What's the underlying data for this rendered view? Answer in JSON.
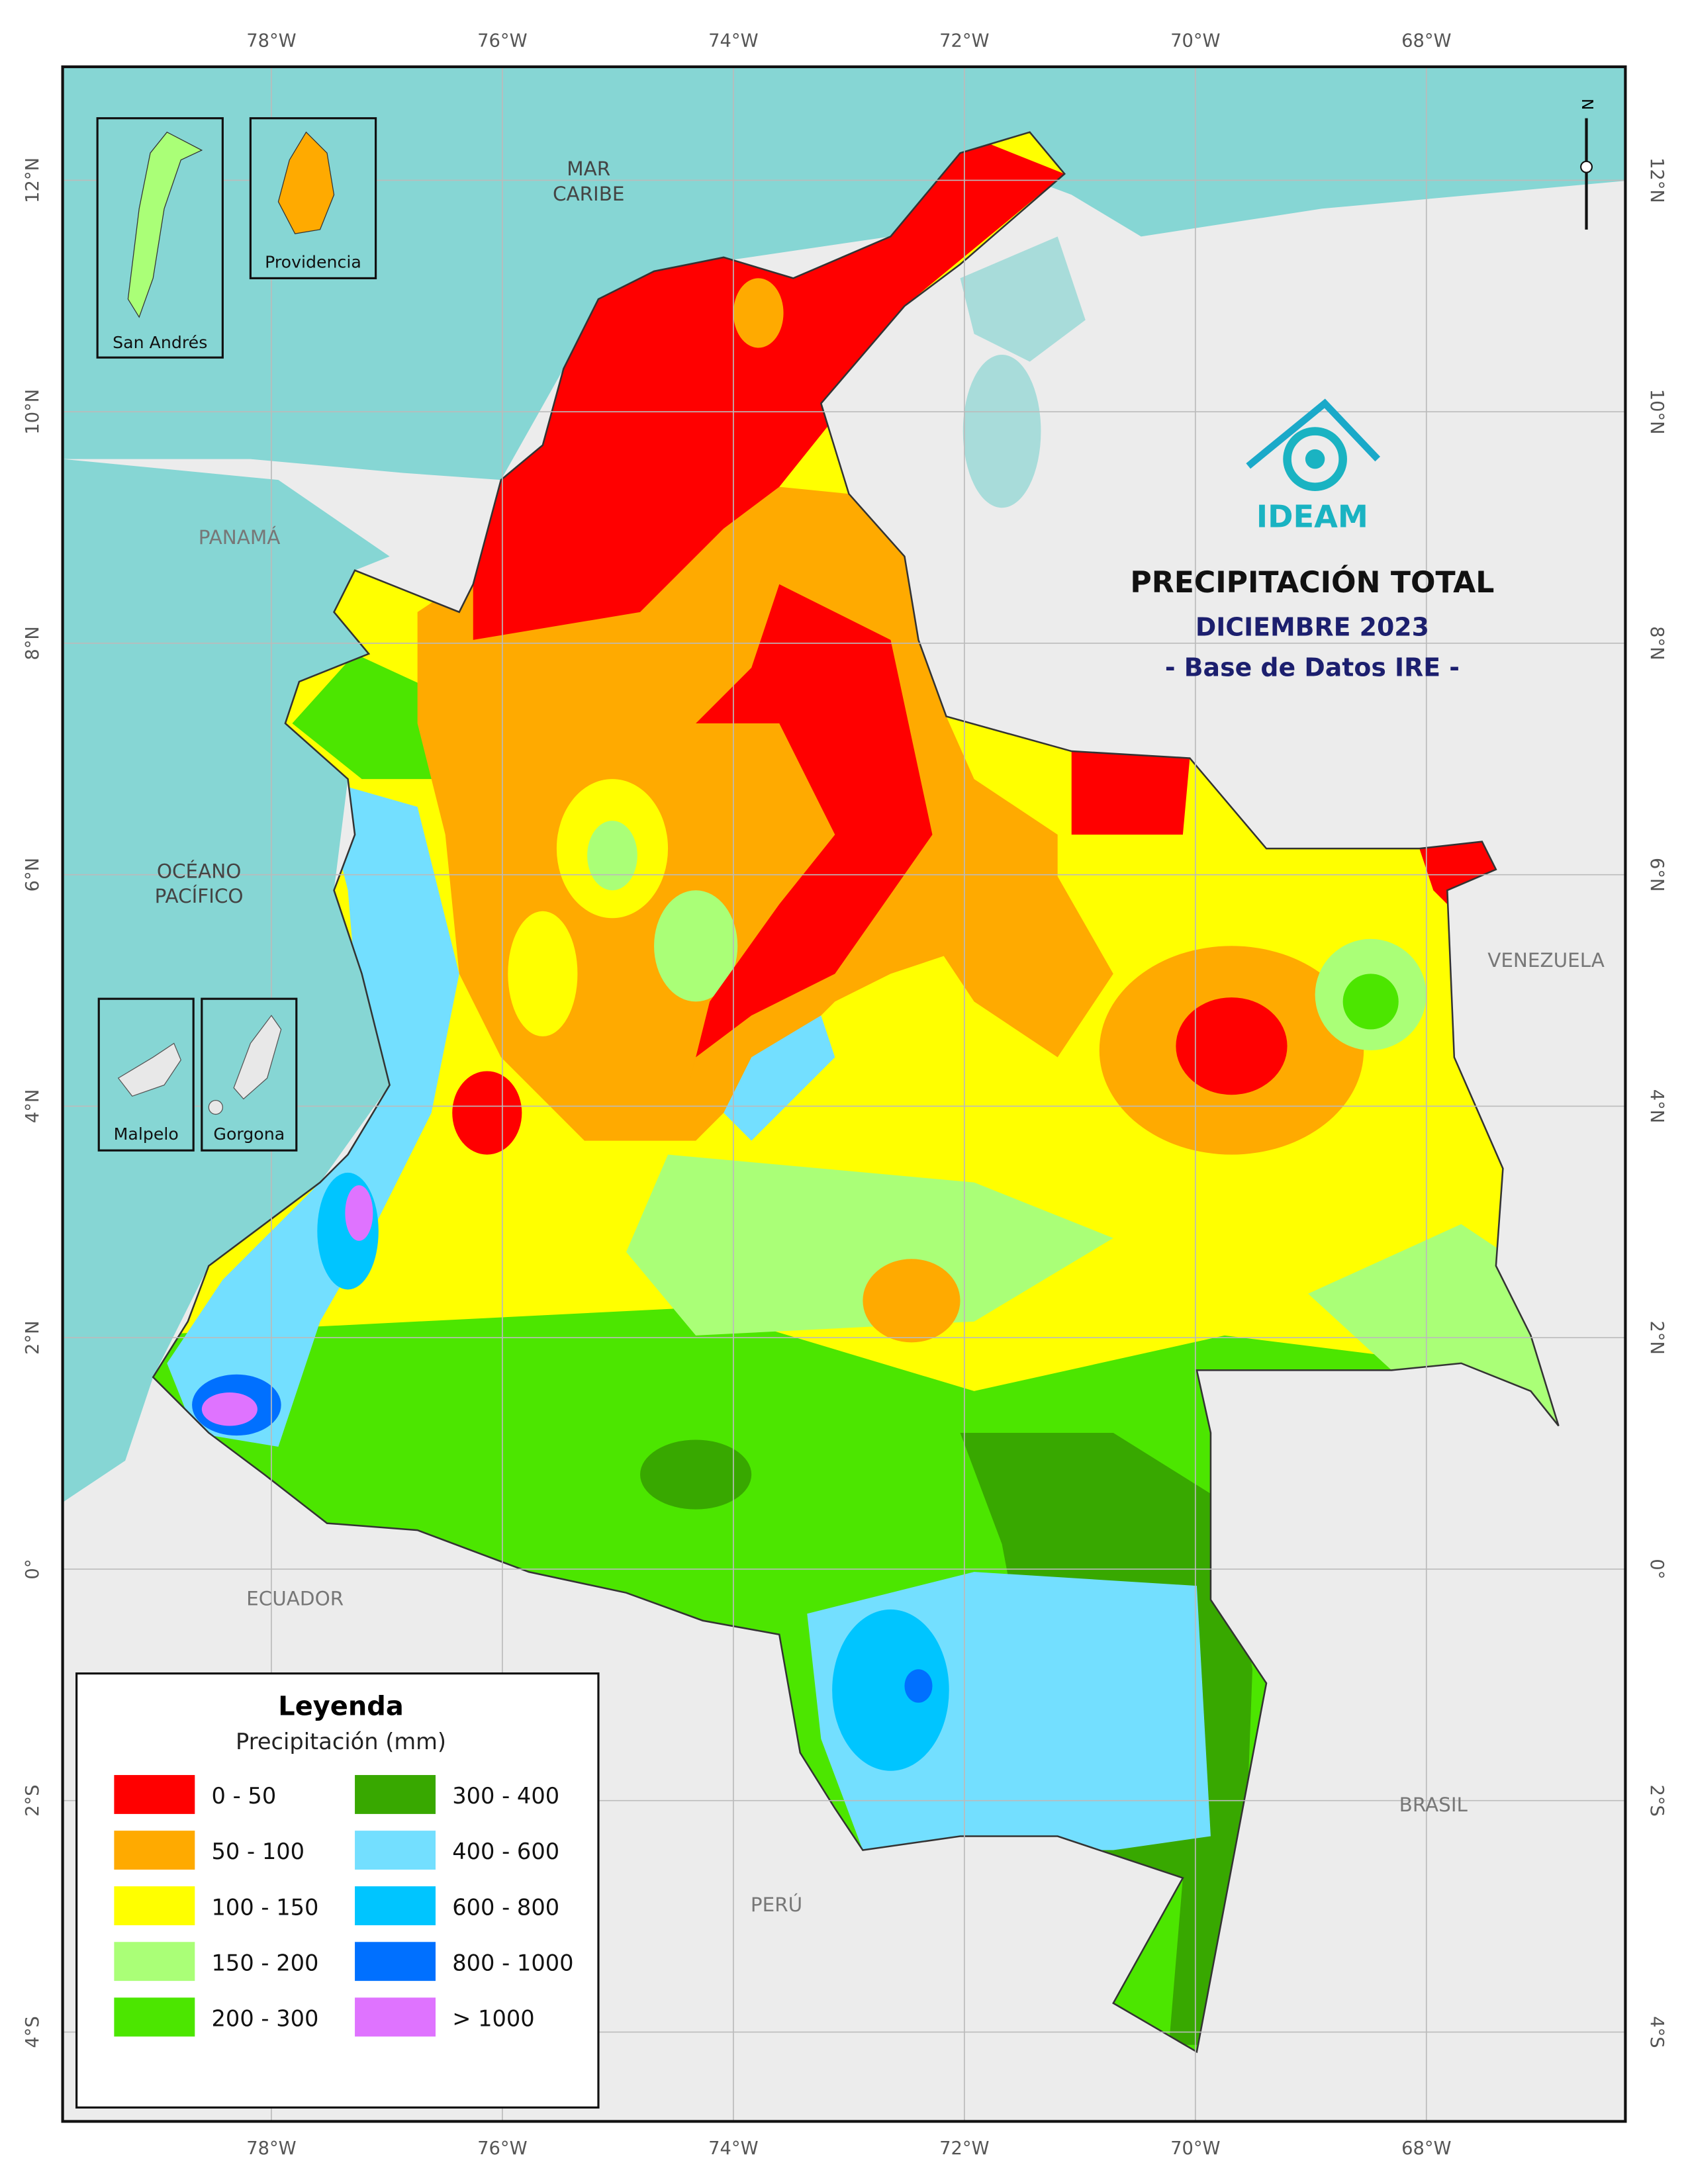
{
  "header": {
    "title": "PRECIPITACIÓN TOTAL",
    "subtitle": "DICIEMBRE 2023",
    "note": "- Base de Datos IRE -"
  },
  "logo": {
    "text": "IDEAM"
  },
  "north_arrow": "N",
  "places": {
    "caribbean": [
      "MAR",
      "CARIBE"
    ],
    "pacific": [
      "OCÉANO",
      "PACÍFICO"
    ],
    "panama": "PANAMÁ",
    "venezuela": "VENEZUELA",
    "ecuador": "ECUADOR",
    "peru": "PERÚ",
    "brasil": "BRASIL"
  },
  "insets": {
    "san_andres": "San Andrés",
    "providencia": "Providencia",
    "malpelo": "Malpelo",
    "gorgona": "Gorgona"
  },
  "grid": {
    "longitudes": [
      {
        "value": -78,
        "label": "78°W"
      },
      {
        "value": -76,
        "label": "76°W"
      },
      {
        "value": -74,
        "label": "74°W"
      },
      {
        "value": -72,
        "label": "72°W"
      },
      {
        "value": -70,
        "label": "70°W"
      },
      {
        "value": -68,
        "label": "68°W"
      }
    ],
    "latitudes": [
      {
        "value": 12,
        "label": "12°N"
      },
      {
        "value": 10,
        "label": "10°N"
      },
      {
        "value": 8,
        "label": "8°N"
      },
      {
        "value": 6,
        "label": "6°N"
      },
      {
        "value": 4,
        "label": "4°N"
      },
      {
        "value": 2,
        "label": "2°N"
      },
      {
        "value": 0,
        "label": "0°"
      },
      {
        "value": -2,
        "label": "2°S"
      },
      {
        "value": -4,
        "label": "4°S"
      }
    ]
  },
  "legend": {
    "title": "Leyenda",
    "subtitle": "Precipitación (mm)",
    "items": [
      {
        "label": "0 - 50",
        "color": "#ff0000"
      },
      {
        "label": "50 - 100",
        "color": "#ffaa00"
      },
      {
        "label": "100 - 150",
        "color": "#ffff00"
      },
      {
        "label": "150 - 200",
        "color": "#aaff77"
      },
      {
        "label": "200 - 300",
        "color": "#4ce600"
      },
      {
        "label": "300 - 400",
        "color": "#38a800"
      },
      {
        "label": "400 - 600",
        "color": "#73dfff"
      },
      {
        "label": "600 - 800",
        "color": "#00c5ff"
      },
      {
        "label": "800 - 1000",
        "color": "#0070ff"
      },
      {
        "label": "> 1000",
        "color": "#df73ff"
      }
    ]
  }
}
